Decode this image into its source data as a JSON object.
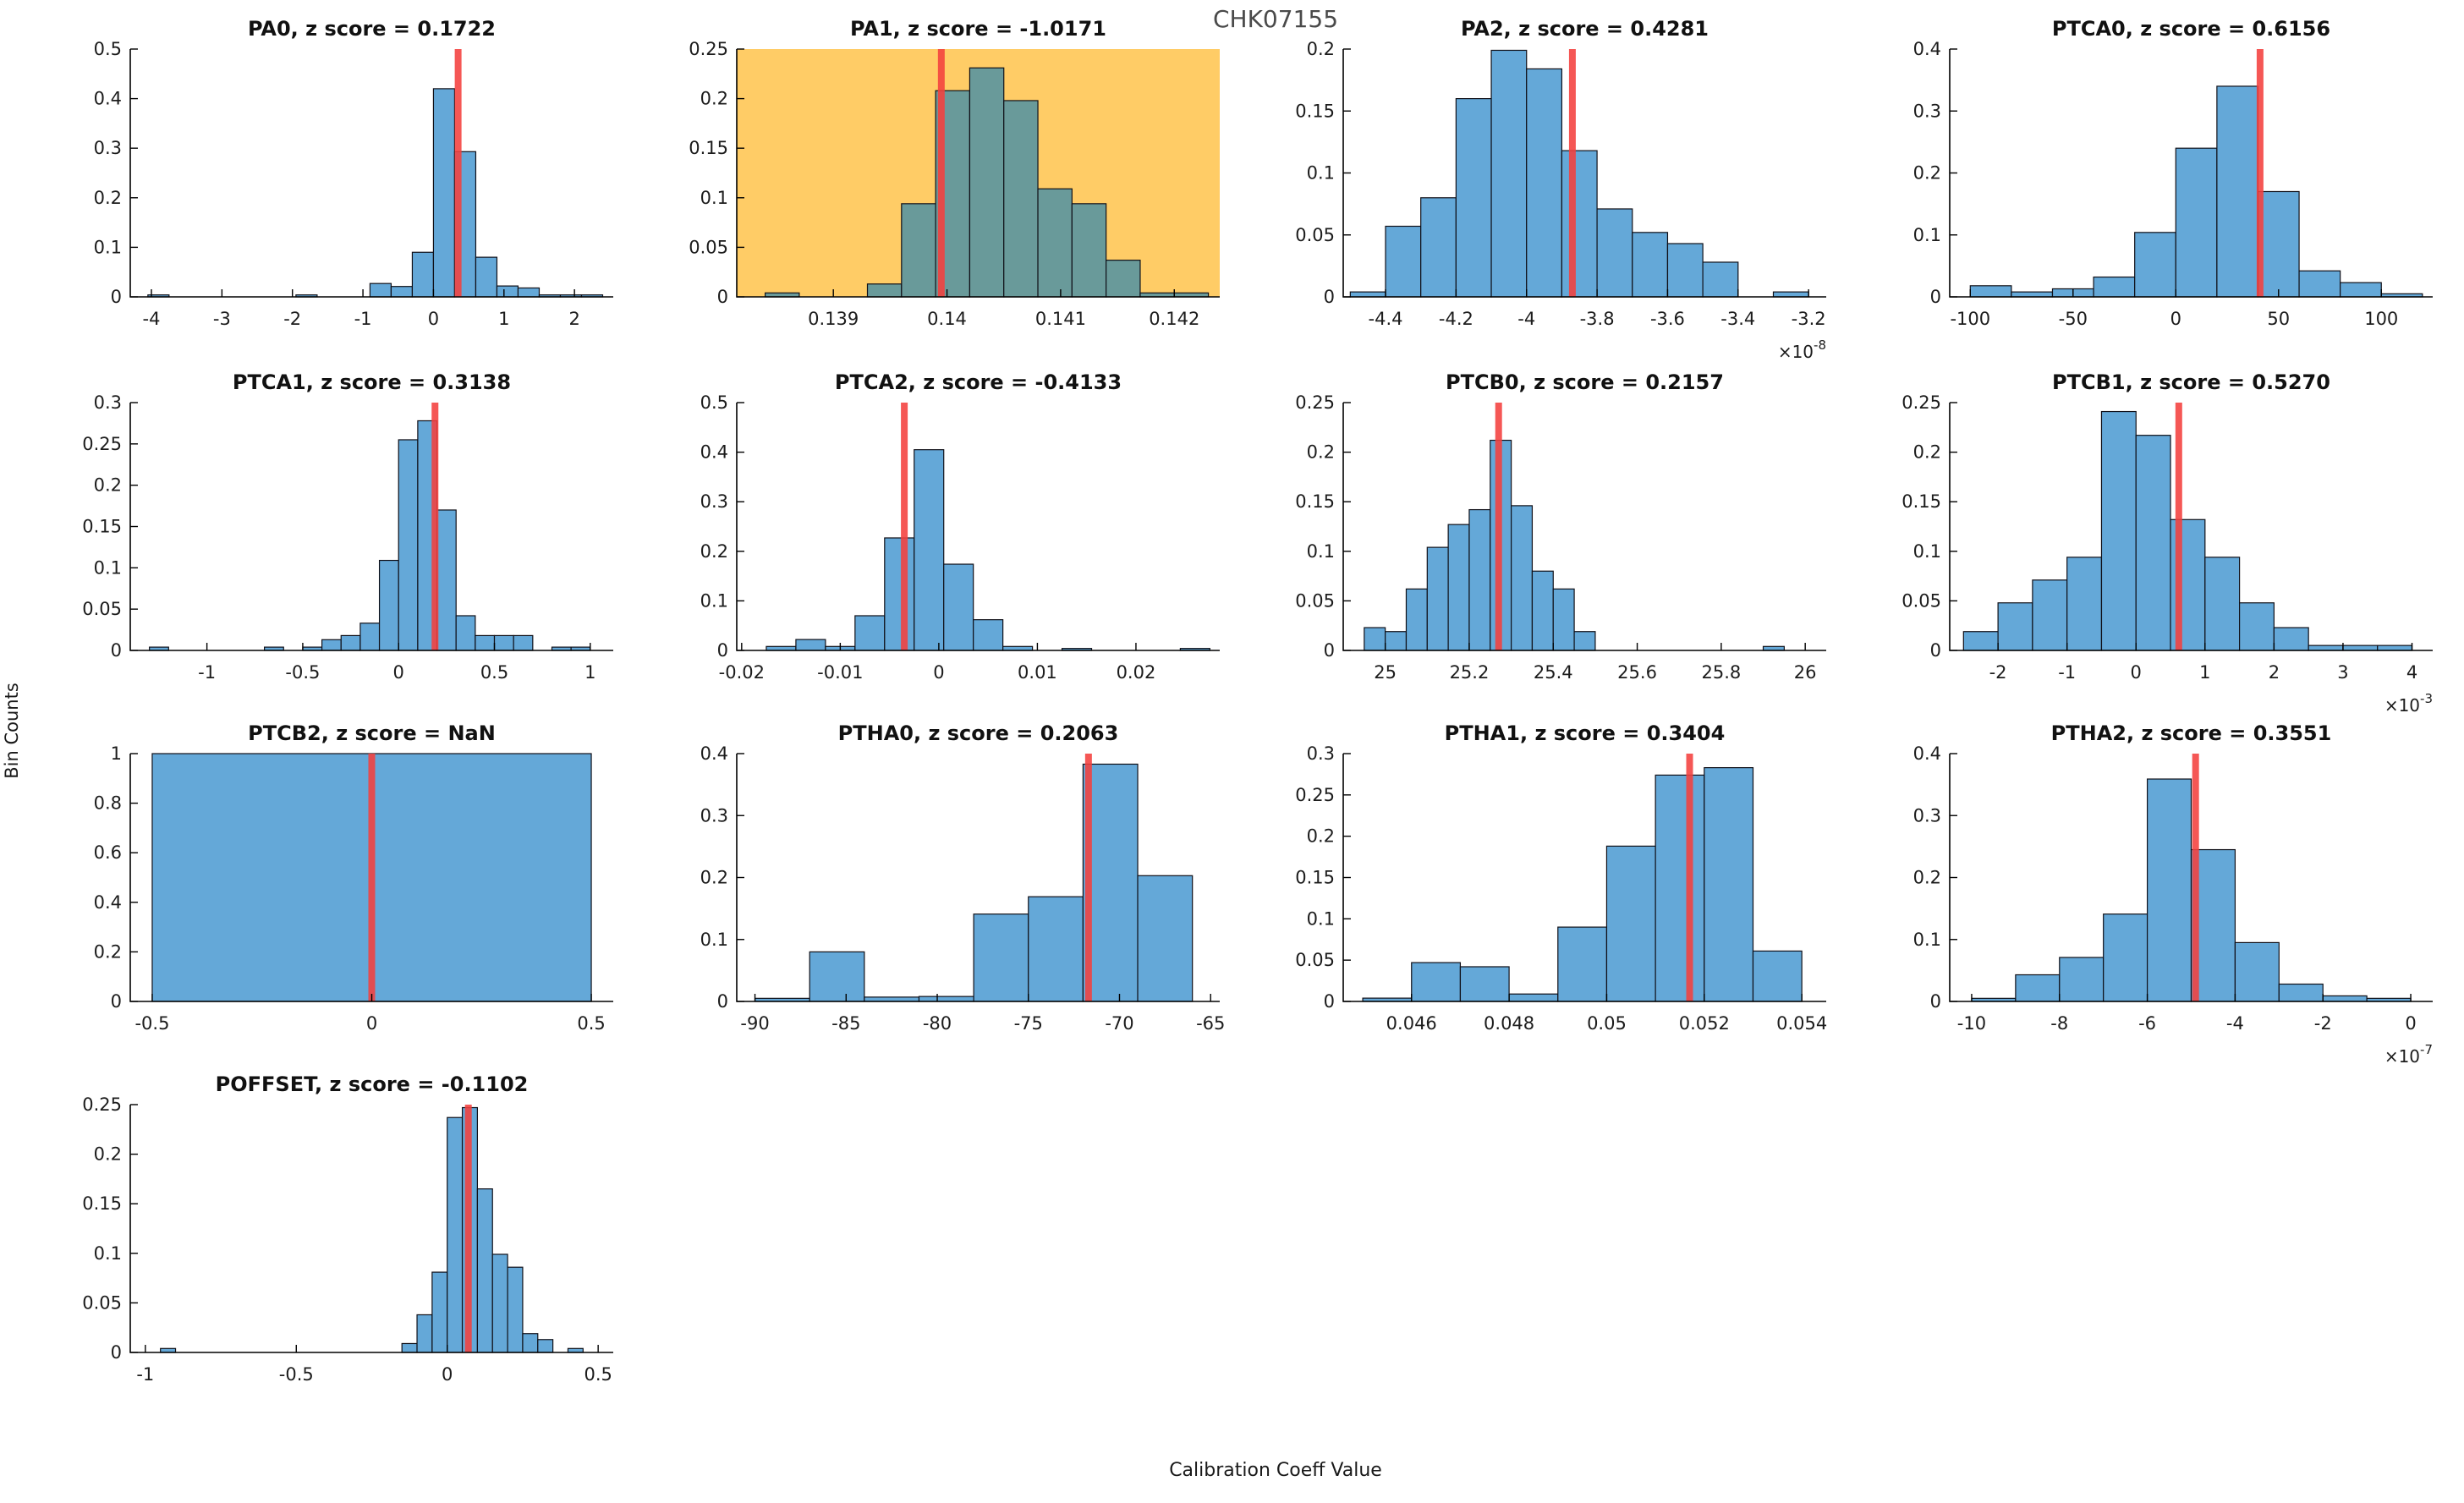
{
  "figure": {
    "title": "CHK07155",
    "xlabel": "Calibration Coeff Value",
    "ylabel": "Bin Counts",
    "colors": {
      "bar": "#64a8d8",
      "bar_edge": "#101018",
      "marker": "#f4403d",
      "highlight_bg": "#ffcc66",
      "highlight_bar": "#699a9a",
      "axis": "#000000",
      "tick_text": "#1c1c1c",
      "subplot_title": "#111111",
      "figure_title": "#4a4a4a"
    }
  },
  "chart_data": [
    {
      "type": "bar",
      "name": "PA0",
      "title": "PA0, z score = 0.1722",
      "z_score": "0.1722",
      "highlighted": false,
      "grid": {
        "row": 0,
        "col": 0
      },
      "xlim": [
        -4.3,
        2.55
      ],
      "ylim": [
        0,
        0.5
      ],
      "xticks": [
        -4,
        -3,
        -2,
        -1,
        0,
        1,
        2
      ],
      "yticks": [
        0,
        0.1,
        0.2,
        0.3,
        0.4,
        0.5
      ],
      "exp": null,
      "marker_x": 0.35,
      "bins": [
        {
          "x0": -4.05,
          "x1": -3.75,
          "h": 0.004
        },
        {
          "x0": -1.95,
          "x1": -1.65,
          "h": 0.004
        },
        {
          "x0": -0.9,
          "x1": -0.6,
          "h": 0.027
        },
        {
          "x0": -0.6,
          "x1": -0.3,
          "h": 0.021
        },
        {
          "x0": -0.3,
          "x1": 0.0,
          "h": 0.09
        },
        {
          "x0": 0.0,
          "x1": 0.3,
          "h": 0.42
        },
        {
          "x0": 0.3,
          "x1": 0.6,
          "h": 0.293
        },
        {
          "x0": 0.6,
          "x1": 0.9,
          "h": 0.08
        },
        {
          "x0": 0.9,
          "x1": 1.2,
          "h": 0.022
        },
        {
          "x0": 1.2,
          "x1": 1.5,
          "h": 0.018
        },
        {
          "x0": 1.5,
          "x1": 1.8,
          "h": 0.004
        },
        {
          "x0": 1.8,
          "x1": 2.1,
          "h": 0.004
        },
        {
          "x0": 2.1,
          "x1": 2.4,
          "h": 0.004
        }
      ]
    },
    {
      "type": "bar",
      "name": "PA1",
      "title": "PA1, z score = -1.0171",
      "z_score": "-1.0171",
      "highlighted": true,
      "grid": {
        "row": 0,
        "col": 1
      },
      "xlim": [
        0.13815,
        0.1424
      ],
      "ylim": [
        0,
        0.25
      ],
      "xticks": [
        0.139,
        0.14,
        0.141,
        0.142
      ],
      "yticks": [
        0,
        0.05,
        0.1,
        0.15,
        0.2,
        0.25
      ],
      "exp": null,
      "marker_x": 0.13995,
      "bins": [
        {
          "x0": 0.1384,
          "x1": 0.1387,
          "h": 0.004
        },
        {
          "x0": 0.1393,
          "x1": 0.1396,
          "h": 0.013
        },
        {
          "x0": 0.1396,
          "x1": 0.1399,
          "h": 0.094
        },
        {
          "x0": 0.1399,
          "x1": 0.1402,
          "h": 0.208
        },
        {
          "x0": 0.1402,
          "x1": 0.1405,
          "h": 0.231
        },
        {
          "x0": 0.1405,
          "x1": 0.1408,
          "h": 0.198
        },
        {
          "x0": 0.1408,
          "x1": 0.1411,
          "h": 0.109
        },
        {
          "x0": 0.1411,
          "x1": 0.1414,
          "h": 0.094
        },
        {
          "x0": 0.1414,
          "x1": 0.1417,
          "h": 0.037
        },
        {
          "x0": 0.1417,
          "x1": 0.142,
          "h": 0.004
        },
        {
          "x0": 0.142,
          "x1": 0.1423,
          "h": 0.004
        }
      ]
    },
    {
      "type": "bar",
      "name": "PA2",
      "title": "PA2, z score = 0.4281",
      "z_score": "0.4281",
      "highlighted": false,
      "grid": {
        "row": 0,
        "col": 2
      },
      "xlim": [
        -4.52,
        -3.15
      ],
      "ylim": [
        0,
        0.2
      ],
      "xticks": [
        -4.4,
        -4.2,
        -4,
        -3.8,
        -3.6,
        -3.4,
        -3.2
      ],
      "yticks": [
        0,
        0.05,
        0.1,
        0.15,
        0.2
      ],
      "exp": "-8",
      "marker_x": -3.87,
      "bins": [
        {
          "x0": -4.5,
          "x1": -4.4,
          "h": 0.004
        },
        {
          "x0": -4.4,
          "x1": -4.3,
          "h": 0.057
        },
        {
          "x0": -4.3,
          "x1": -4.2,
          "h": 0.08
        },
        {
          "x0": -4.2,
          "x1": -4.1,
          "h": 0.16
        },
        {
          "x0": -4.1,
          "x1": -4.0,
          "h": 0.199
        },
        {
          "x0": -4.0,
          "x1": -3.9,
          "h": 0.184
        },
        {
          "x0": -3.9,
          "x1": -3.8,
          "h": 0.118
        },
        {
          "x0": -3.8,
          "x1": -3.7,
          "h": 0.071
        },
        {
          "x0": -3.7,
          "x1": -3.6,
          "h": 0.052
        },
        {
          "x0": -3.6,
          "x1": -3.5,
          "h": 0.043
        },
        {
          "x0": -3.5,
          "x1": -3.4,
          "h": 0.028
        },
        {
          "x0": -3.3,
          "x1": -3.2,
          "h": 0.004
        }
      ]
    },
    {
      "type": "bar",
      "name": "PTCA0",
      "title": "PTCA0, z score = 0.6156",
      "z_score": "0.6156",
      "highlighted": false,
      "grid": {
        "row": 0,
        "col": 3
      },
      "xlim": [
        -110,
        125
      ],
      "ylim": [
        0,
        0.4
      ],
      "xticks": [
        -100,
        -50,
        0,
        50,
        100
      ],
      "yticks": [
        0,
        0.1,
        0.2,
        0.3,
        0.4
      ],
      "exp": null,
      "marker_x": 41,
      "bins": [
        {
          "x0": -100,
          "x1": -80,
          "h": 0.018
        },
        {
          "x0": -80,
          "x1": -60,
          "h": 0.008
        },
        {
          "x0": -60,
          "x1": -40,
          "h": 0.013
        },
        {
          "x0": -40,
          "x1": -20,
          "h": 0.032
        },
        {
          "x0": -20,
          "x1": 0,
          "h": 0.104
        },
        {
          "x0": 0,
          "x1": 20,
          "h": 0.24
        },
        {
          "x0": 20,
          "x1": 40,
          "h": 0.34
        },
        {
          "x0": 40,
          "x1": 60,
          "h": 0.17
        },
        {
          "x0": 60,
          "x1": 80,
          "h": 0.042
        },
        {
          "x0": 80,
          "x1": 100,
          "h": 0.023
        },
        {
          "x0": 100,
          "x1": 120,
          "h": 0.005
        }
      ]
    },
    {
      "type": "bar",
      "name": "PTCA1",
      "title": "PTCA1, z score = 0.3138",
      "z_score": "0.3138",
      "highlighted": false,
      "grid": {
        "row": 1,
        "col": 0
      },
      "xlim": [
        -1.4,
        1.12
      ],
      "ylim": [
        0,
        0.3
      ],
      "xticks": [
        -1,
        -0.5,
        0,
        0.5,
        1
      ],
      "yticks": [
        0,
        0.05,
        0.1,
        0.15,
        0.2,
        0.25,
        0.3
      ],
      "exp": null,
      "marker_x": 0.19,
      "bins": [
        {
          "x0": -1.3,
          "x1": -1.2,
          "h": 0.004
        },
        {
          "x0": -0.7,
          "x1": -0.6,
          "h": 0.004
        },
        {
          "x0": -0.5,
          "x1": -0.4,
          "h": 0.004
        },
        {
          "x0": -0.4,
          "x1": -0.3,
          "h": 0.013
        },
        {
          "x0": -0.3,
          "x1": -0.2,
          "h": 0.018
        },
        {
          "x0": -0.2,
          "x1": -0.1,
          "h": 0.033
        },
        {
          "x0": -0.1,
          "x1": 0,
          "h": 0.109
        },
        {
          "x0": 0,
          "x1": 0.1,
          "h": 0.255
        },
        {
          "x0": 0.1,
          "x1": 0.2,
          "h": 0.278
        },
        {
          "x0": 0.2,
          "x1": 0.3,
          "h": 0.17
        },
        {
          "x0": 0.3,
          "x1": 0.4,
          "h": 0.042
        },
        {
          "x0": 0.4,
          "x1": 0.5,
          "h": 0.018
        },
        {
          "x0": 0.5,
          "x1": 0.6,
          "h": 0.018
        },
        {
          "x0": 0.6,
          "x1": 0.7,
          "h": 0.018
        },
        {
          "x0": 0.8,
          "x1": 0.9,
          "h": 0.004
        },
        {
          "x0": 0.9,
          "x1": 1.0,
          "h": 0.004
        }
      ]
    },
    {
      "type": "bar",
      "name": "PTCA2",
      "title": "PTCA2, z score = -0.4133",
      "z_score": "-0.4133",
      "highlighted": false,
      "grid": {
        "row": 1,
        "col": 1
      },
      "xlim": [
        -0.0205,
        0.0285
      ],
      "ylim": [
        0,
        0.5
      ],
      "xticks": [
        -0.02,
        -0.01,
        0,
        0.01,
        0.02
      ],
      "yticks": [
        0,
        0.1,
        0.2,
        0.3,
        0.4,
        0.5
      ],
      "exp": null,
      "marker_x": -0.0035,
      "bins": [
        {
          "x0": -0.0175,
          "x1": -0.0145,
          "h": 0.008
        },
        {
          "x0": -0.0145,
          "x1": -0.0115,
          "h": 0.022
        },
        {
          "x0": -0.0115,
          "x1": -0.0085,
          "h": 0.008
        },
        {
          "x0": -0.0085,
          "x1": -0.0055,
          "h": 0.07
        },
        {
          "x0": -0.0055,
          "x1": -0.0025,
          "h": 0.227
        },
        {
          "x0": -0.0025,
          "x1": 0.0005,
          "h": 0.405
        },
        {
          "x0": 0.0005,
          "x1": 0.0035,
          "h": 0.174
        },
        {
          "x0": 0.0035,
          "x1": 0.0065,
          "h": 0.062
        },
        {
          "x0": 0.0065,
          "x1": 0.0095,
          "h": 0.008
        },
        {
          "x0": 0.0125,
          "x1": 0.0155,
          "h": 0.004
        },
        {
          "x0": 0.0245,
          "x1": 0.0275,
          "h": 0.004
        }
      ]
    },
    {
      "type": "bar",
      "name": "PTCB0",
      "title": "PTCB0, z score = 0.2157",
      "z_score": "0.2157",
      "highlighted": false,
      "grid": {
        "row": 1,
        "col": 2
      },
      "xlim": [
        24.9,
        26.05
      ],
      "ylim": [
        0,
        0.25
      ],
      "xticks": [
        25,
        25.2,
        25.4,
        25.6,
        25.8,
        26
      ],
      "yticks": [
        0,
        0.05,
        0.1,
        0.15,
        0.2,
        0.25
      ],
      "exp": null,
      "marker_x": 25.27,
      "bins": [
        {
          "x0": 24.95,
          "x1": 25.0,
          "h": 0.023
        },
        {
          "x0": 25.0,
          "x1": 25.05,
          "h": 0.019
        },
        {
          "x0": 25.05,
          "x1": 25.1,
          "h": 0.062
        },
        {
          "x0": 25.1,
          "x1": 25.15,
          "h": 0.104
        },
        {
          "x0": 25.15,
          "x1": 25.2,
          "h": 0.127
        },
        {
          "x0": 25.2,
          "x1": 25.25,
          "h": 0.142
        },
        {
          "x0": 25.25,
          "x1": 25.3,
          "h": 0.212
        },
        {
          "x0": 25.3,
          "x1": 25.35,
          "h": 0.146
        },
        {
          "x0": 25.35,
          "x1": 25.4,
          "h": 0.08
        },
        {
          "x0": 25.4,
          "x1": 25.45,
          "h": 0.062
        },
        {
          "x0": 25.45,
          "x1": 25.5,
          "h": 0.019
        },
        {
          "x0": 25.9,
          "x1": 25.95,
          "h": 0.004
        }
      ]
    },
    {
      "type": "bar",
      "name": "PTCB1",
      "title": "PTCB1, z score = 0.5270",
      "z_score": "0.5270",
      "highlighted": false,
      "grid": {
        "row": 1,
        "col": 3
      },
      "xlim": [
        -2.7,
        4.3
      ],
      "ylim": [
        0,
        0.25
      ],
      "xticks": [
        -2,
        -1,
        0,
        1,
        2,
        3,
        4
      ],
      "yticks": [
        0,
        0.05,
        0.1,
        0.15,
        0.2,
        0.25
      ],
      "exp": "-3",
      "marker_x": 0.62,
      "bins": [
        {
          "x0": -2.5,
          "x1": -2,
          "h": 0.019
        },
        {
          "x0": -2,
          "x1": -1.5,
          "h": 0.048
        },
        {
          "x0": -1.5,
          "x1": -1,
          "h": 0.071
        },
        {
          "x0": -1,
          "x1": -0.5,
          "h": 0.094
        },
        {
          "x0": -0.5,
          "x1": 0,
          "h": 0.241
        },
        {
          "x0": 0,
          "x1": 0.5,
          "h": 0.217
        },
        {
          "x0": 0.5,
          "x1": 1,
          "h": 0.132
        },
        {
          "x0": 1,
          "x1": 1.5,
          "h": 0.094
        },
        {
          "x0": 1.5,
          "x1": 2,
          "h": 0.048
        },
        {
          "x0": 2,
          "x1": 2.5,
          "h": 0.023
        },
        {
          "x0": 2.5,
          "x1": 3,
          "h": 0.005
        },
        {
          "x0": 3,
          "x1": 3.5,
          "h": 0.005
        },
        {
          "x0": 3.5,
          "x1": 4,
          "h": 0.005
        }
      ]
    },
    {
      "type": "bar",
      "name": "PTCB2",
      "title": "PTCB2, z score = NaN",
      "z_score": "NaN",
      "highlighted": false,
      "grid": {
        "row": 2,
        "col": 0
      },
      "xlim": [
        -0.55,
        0.55
      ],
      "ylim": [
        0,
        1
      ],
      "xticks": [
        -0.5,
        0,
        0.5
      ],
      "yticks": [
        0,
        0.2,
        0.4,
        0.6,
        0.8,
        1
      ],
      "exp": null,
      "marker_x": 0,
      "bins": [
        {
          "x0": -0.5,
          "x1": 0.5,
          "h": 1.0
        }
      ]
    },
    {
      "type": "bar",
      "name": "PTHA0",
      "title": "PTHA0, z score = 0.2063",
      "z_score": "0.2063",
      "highlighted": false,
      "grid": {
        "row": 2,
        "col": 1
      },
      "xlim": [
        -91,
        -64.5
      ],
      "ylim": [
        0,
        0.4
      ],
      "xticks": [
        -90,
        -85,
        -80,
        -75,
        -70,
        -65
      ],
      "yticks": [
        0,
        0.1,
        0.2,
        0.3,
        0.4
      ],
      "exp": null,
      "marker_x": -71.7,
      "bins": [
        {
          "x0": -90,
          "x1": -87,
          "h": 0.005
        },
        {
          "x0": -87,
          "x1": -84,
          "h": 0.08
        },
        {
          "x0": -84,
          "x1": -81,
          "h": 0.007
        },
        {
          "x0": -81,
          "x1": -78,
          "h": 0.008
        },
        {
          "x0": -78,
          "x1": -75,
          "h": 0.141
        },
        {
          "x0": -75,
          "x1": -72,
          "h": 0.169
        },
        {
          "x0": -72,
          "x1": -69,
          "h": 0.383
        },
        {
          "x0": -69,
          "x1": -66,
          "h": 0.203
        }
      ]
    },
    {
      "type": "bar",
      "name": "PTHA1",
      "title": "PTHA1, z score = 0.3404",
      "z_score": "0.3404",
      "highlighted": false,
      "grid": {
        "row": 2,
        "col": 2
      },
      "xlim": [
        0.0446,
        0.0545
      ],
      "ylim": [
        0,
        0.3
      ],
      "xticks": [
        0.046,
        0.048,
        0.05,
        0.052,
        0.054
      ],
      "yticks": [
        0,
        0.05,
        0.1,
        0.15,
        0.2,
        0.25,
        0.3
      ],
      "exp": null,
      "marker_x": 0.0517,
      "bins": [
        {
          "x0": 0.045,
          "x1": 0.046,
          "h": 0.004
        },
        {
          "x0": 0.046,
          "x1": 0.047,
          "h": 0.047
        },
        {
          "x0": 0.047,
          "x1": 0.048,
          "h": 0.042
        },
        {
          "x0": 0.048,
          "x1": 0.049,
          "h": 0.009
        },
        {
          "x0": 0.049,
          "x1": 0.05,
          "h": 0.09
        },
        {
          "x0": 0.05,
          "x1": 0.051,
          "h": 0.188
        },
        {
          "x0": 0.051,
          "x1": 0.052,
          "h": 0.274
        },
        {
          "x0": 0.052,
          "x1": 0.053,
          "h": 0.283
        },
        {
          "x0": 0.053,
          "x1": 0.054,
          "h": 0.061
        }
      ]
    },
    {
      "type": "bar",
      "name": "PTHA2",
      "title": "PTHA2, z score = 0.3551",
      "z_score": "0.3551",
      "highlighted": false,
      "grid": {
        "row": 2,
        "col": 3
      },
      "xlim": [
        -10.5,
        0.5
      ],
      "ylim": [
        0,
        0.4
      ],
      "xticks": [
        -10,
        -8,
        -6,
        -4,
        -2,
        0
      ],
      "yticks": [
        0,
        0.1,
        0.2,
        0.3,
        0.4
      ],
      "exp": "-7",
      "marker_x": -4.9,
      "bins": [
        {
          "x0": -10,
          "x1": -9,
          "h": 0.005
        },
        {
          "x0": -9,
          "x1": -8,
          "h": 0.043
        },
        {
          "x0": -8,
          "x1": -7,
          "h": 0.071
        },
        {
          "x0": -7,
          "x1": -6,
          "h": 0.141
        },
        {
          "x0": -6,
          "x1": -5,
          "h": 0.359
        },
        {
          "x0": -5,
          "x1": -4,
          "h": 0.245
        },
        {
          "x0": -4,
          "x1": -3,
          "h": 0.095
        },
        {
          "x0": -3,
          "x1": -2,
          "h": 0.028
        },
        {
          "x0": -2,
          "x1": -1,
          "h": 0.009
        },
        {
          "x0": -1,
          "x1": 0,
          "h": 0.005
        }
      ]
    },
    {
      "type": "bar",
      "name": "POFFSET",
      "title": "POFFSET, z score = -0.1102",
      "z_score": "-0.1102",
      "highlighted": false,
      "grid": {
        "row": 3,
        "col": 0
      },
      "xlim": [
        -1.05,
        0.55
      ],
      "ylim": [
        0,
        0.25
      ],
      "xticks": [
        -1,
        -0.5,
        0,
        0.5
      ],
      "yticks": [
        0,
        0.05,
        0.1,
        0.15,
        0.2,
        0.25
      ],
      "exp": null,
      "marker_x": 0.07,
      "bins": [
        {
          "x0": -0.95,
          "x1": -0.9,
          "h": 0.004
        },
        {
          "x0": -0.15,
          "x1": -0.1,
          "h": 0.009
        },
        {
          "x0": -0.1,
          "x1": -0.05,
          "h": 0.038
        },
        {
          "x0": -0.05,
          "x1": 0,
          "h": 0.081
        },
        {
          "x0": 0,
          "x1": 0.05,
          "h": 0.237
        },
        {
          "x0": 0.05,
          "x1": 0.1,
          "h": 0.247
        },
        {
          "x0": 0.1,
          "x1": 0.15,
          "h": 0.165
        },
        {
          "x0": 0.15,
          "x1": 0.2,
          "h": 0.099
        },
        {
          "x0": 0.2,
          "x1": 0.25,
          "h": 0.086
        },
        {
          "x0": 0.25,
          "x1": 0.3,
          "h": 0.019
        },
        {
          "x0": 0.3,
          "x1": 0.35,
          "h": 0.013
        },
        {
          "x0": 0.4,
          "x1": 0.45,
          "h": 0.004
        }
      ]
    }
  ]
}
